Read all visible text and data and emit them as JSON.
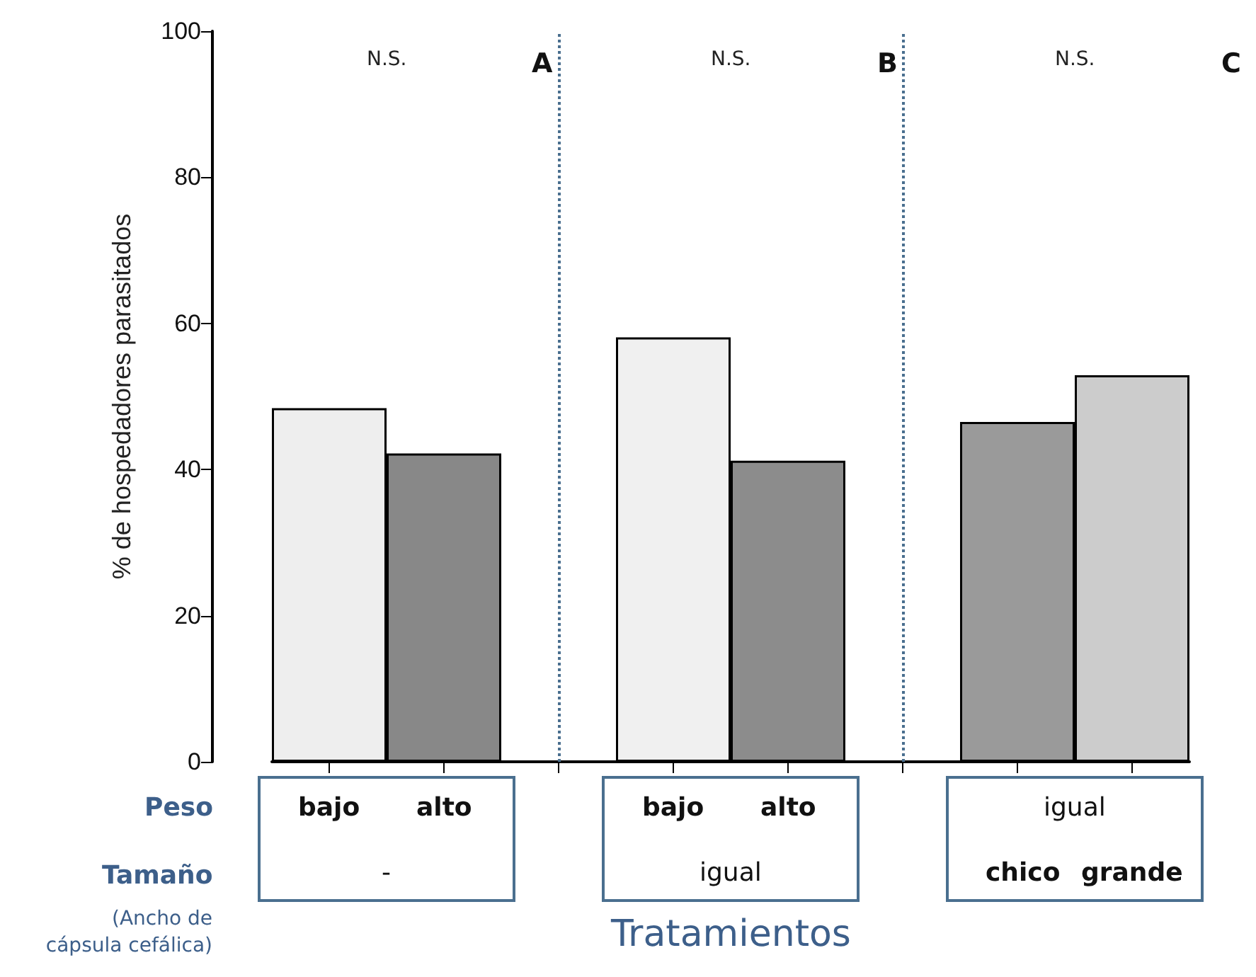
{
  "chart_data": {
    "type": "bar",
    "ylabel": "% de hospedadores parasitados",
    "xlabel": "Tratamientos",
    "categories": [
      null,
      null,
      null,
      null,
      null,
      null,
      null,
      null
    ],
    "values": [
      48.4,
      42.2,
      null,
      58.1,
      41.2,
      null,
      46.5,
      52.9
    ],
    "colors": [
      "#eeeeee",
      "#888888",
      null,
      "#f0f0f0",
      "#8c8c8c",
      null,
      "#9a9a9a",
      "#cccccc"
    ],
    "ylim": [
      0,
      100
    ],
    "yticks": [
      0,
      20,
      40,
      60,
      80,
      100
    ],
    "grid": false,
    "annotations": [
      "N.S.",
      "A",
      "N.S.",
      "B",
      "N.S.",
      "C",
      "Peso",
      "Tamaño",
      "(Ancho de cápsula cefálica)",
      "bajo",
      "alto",
      "-",
      "bajo",
      "alto",
      "igual",
      "igual",
      "chico",
      "grande"
    ]
  }
}
